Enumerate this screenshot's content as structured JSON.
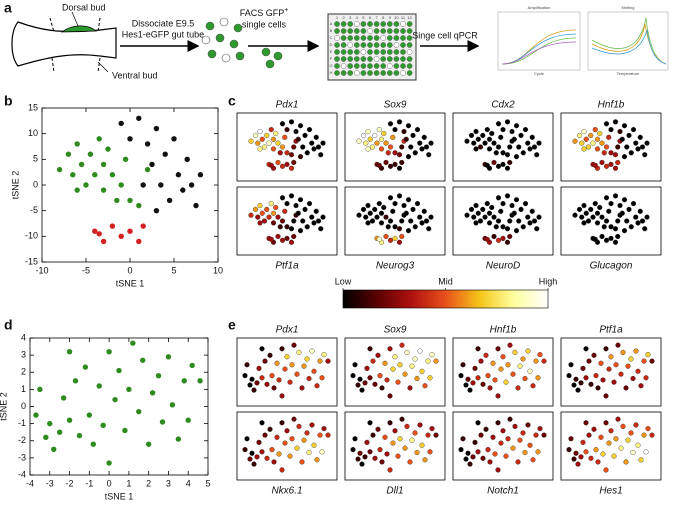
{
  "panel_labels": [
    "a",
    "b",
    "c",
    "d",
    "e"
  ],
  "workflow": {
    "dorsal_bud": "Dorsal bud",
    "ventral_bud": "Ventral bud",
    "dissociate": [
      "Dissociate E9.5",
      "Hes1-eGFP gut tube"
    ],
    "facs": {
      "text": "FACS GFP",
      "sup": "+",
      "line2": "single cells"
    },
    "qpcr": "Singe cell qPCR",
    "plate_columns": [
      "1",
      "2",
      "3",
      "4",
      "5",
      "6",
      "7",
      "8",
      "9",
      "10",
      "11",
      "12"
    ],
    "plate_rows": [
      "A",
      "B",
      "C",
      "D",
      "E",
      "F",
      "G",
      "H"
    ],
    "amplification": {
      "title": "Amplification",
      "xlabel": "Cycle"
    },
    "melting": {
      "title": "Melting",
      "xlabel": "Temperature"
    }
  },
  "colorbar": {
    "clim": [
      0,
      1
    ],
    "ticks": [
      {
        "value": 0,
        "label": "Low"
      },
      {
        "value": 0.5,
        "label": "Mid"
      },
      {
        "value": 1,
        "label": "High"
      }
    ],
    "colors": [
      "#000000",
      "#5a0000",
      "#b01010",
      "#e8501a",
      "#f5c518",
      "#ffffa0",
      "#ffffff"
    ]
  },
  "chart_data": [
    {
      "type": "scatter",
      "xlabel": "tSNE 1",
      "ylabel": "tSNE 2",
      "xlim": [
        -10,
        10
      ],
      "ylim": [
        -15,
        15
      ],
      "xticks": [
        -10,
        -5,
        0,
        5,
        10
      ],
      "yticks": [
        -15,
        -10,
        -5,
        0,
        5,
        10,
        15
      ],
      "series": [
        {
          "color": "#2e8b1e",
          "x": [
            -8,
            -7,
            -6.5,
            -6,
            -5.5,
            -5,
            -4.5,
            -4,
            -3.5,
            -3,
            -3,
            -2.5,
            -2,
            -1.5,
            -1,
            -0.5,
            0,
            1,
            2,
            -6
          ],
          "y": [
            3,
            6,
            2,
            8,
            4,
            0,
            6,
            2,
            9,
            4,
            -1,
            7,
            2,
            -3,
            0,
            5,
            -3,
            -4,
            3,
            -1
          ]
        },
        {
          "color": "#111111",
          "x": [
            -1,
            0,
            1,
            2,
            2.5,
            3,
            3.5,
            4,
            4.5,
            5,
            5.5,
            6,
            6.5,
            7,
            7.5,
            8,
            3,
            1.5
          ],
          "y": [
            12,
            9,
            13,
            8,
            4,
            11,
            0,
            6,
            -3,
            9,
            2,
            -1,
            5,
            0,
            -4,
            2,
            -5,
            0
          ]
        },
        {
          "color": "#d42020",
          "x": [
            -4,
            -3,
            -2,
            -1,
            0,
            1,
            1.5,
            -3.5
          ],
          "y": [
            -9,
            -11,
            -8,
            -10,
            -9,
            -11,
            -8,
            -9.5
          ]
        }
      ]
    },
    {
      "type": "expression_grid",
      "series": [
        {
          "name": "Pdx1",
          "values": [
            0.7,
            0.9,
            0.6,
            1,
            0.5,
            0.8,
            0.7,
            0.9,
            0.4,
            0.6,
            0.5,
            0.8,
            0.7,
            0.3,
            0.6,
            0.5,
            0.4,
            0.2,
            0.3,
            0.8,
            0,
            0.1,
            0,
            0,
            0.1,
            0,
            0,
            0,
            0,
            0,
            0,
            0,
            0,
            0,
            0,
            0,
            0.1,
            0.2,
            0.4,
            0.3,
            0.5,
            0.4,
            0.3,
            0.4,
            0.2,
            0.3
          ]
        },
        {
          "name": "Sox9",
          "values": [
            0.9,
            1,
            0.8,
            0.9,
            0.7,
            0.8,
            1,
            0.6,
            0.9,
            0.8,
            0.5,
            0.7,
            0.6,
            0.4,
            0.5,
            0.6,
            0.3,
            0.2,
            0.4,
            0.9,
            0,
            0,
            0,
            0.1,
            0.1,
            0,
            0,
            0,
            0,
            0,
            0,
            0,
            0,
            0,
            0,
            0,
            0,
            0.1,
            0.2,
            0.1,
            0.2,
            0.1,
            0.1,
            0,
            0.1,
            0.2
          ]
        },
        {
          "name": "Cdx2",
          "values": [
            0,
            0,
            0,
            0,
            0,
            0.1,
            0,
            0,
            0,
            0,
            0,
            0,
            0,
            0,
            0,
            0,
            0,
            0,
            0,
            0,
            0,
            0,
            0,
            0,
            0,
            0,
            0,
            0,
            0,
            0,
            0,
            0,
            0,
            0,
            0,
            0,
            0,
            0,
            0.1,
            0,
            0.2,
            0,
            0,
            0,
            0.1,
            0
          ]
        },
        {
          "name": "Hnf1b",
          "values": [
            0.6,
            0.8,
            0.7,
            0.9,
            0.5,
            0.7,
            0.6,
            0.8,
            0.5,
            0.6,
            0.5,
            0.7,
            0.6,
            0.4,
            0.5,
            0.4,
            0.3,
            0.3,
            0.3,
            0.7,
            0,
            0,
            0,
            0.1,
            0,
            0,
            0,
            0,
            0,
            0,
            0,
            0,
            0,
            0,
            0,
            0,
            0,
            0.1,
            0.3,
            0.4,
            0.3,
            0.4,
            0.3,
            0.3,
            0.4,
            0.3
          ]
        },
        {
          "name": "Ptf1a",
          "values": [
            0.4,
            0.6,
            0.3,
            0.7,
            0.5,
            0.3,
            0.5,
            0.4,
            0.8,
            0.6,
            0.2,
            0.5,
            0.3,
            0.1,
            0.2,
            0.4,
            0.1,
            0,
            0.1,
            0.3,
            0,
            0,
            0,
            0,
            0,
            0,
            0,
            0,
            0,
            0,
            0,
            0,
            0,
            0,
            0,
            0,
            0,
            0,
            0.3,
            0.2,
            0.3,
            0.3,
            0.2,
            0.3,
            0.2,
            0.3
          ]
        },
        {
          "name": "Neurog3",
          "values": [
            0,
            0,
            0,
            0,
            0,
            0,
            0,
            0,
            0,
            0,
            0,
            0,
            0.1,
            0,
            0,
            0,
            0,
            0.1,
            0,
            0,
            0,
            0,
            0,
            0,
            0,
            0,
            0,
            0,
            0,
            0,
            0,
            0,
            0,
            0,
            0,
            0,
            0,
            0,
            0.6,
            0.8,
            0.5,
            0.4,
            0.7,
            0.3,
            0.5,
            0.9
          ]
        },
        {
          "name": "NeuroD",
          "values": [
            0,
            0,
            0,
            0,
            0,
            0,
            0,
            0,
            0,
            0,
            0,
            0,
            0,
            0,
            0,
            0,
            0,
            0,
            0,
            0,
            0,
            0,
            0,
            0,
            0,
            0,
            0,
            0,
            0,
            0,
            0,
            0,
            0,
            0,
            0,
            0,
            0,
            0,
            0.2,
            0.3,
            0.1,
            0.4,
            0.3,
            0.1,
            0.2,
            0.3
          ]
        },
        {
          "name": "Glucagon",
          "values": [
            0,
            0,
            0,
            0,
            0,
            0,
            0,
            0,
            0,
            0,
            0,
            0,
            0,
            0,
            0,
            0,
            0,
            0,
            0,
            0,
            0,
            0,
            0,
            0,
            0,
            0,
            0,
            0,
            0,
            0,
            0,
            0,
            0,
            0,
            0,
            0,
            0,
            0,
            0,
            0,
            0,
            0,
            0,
            0,
            0,
            0
          ]
        }
      ]
    },
    {
      "type": "scatter",
      "xlabel": "tSNE 1",
      "ylabel": "tSNE 2",
      "xlim": [
        -4,
        5
      ],
      "ylim": [
        -4,
        4
      ],
      "xticks": [
        -4,
        -3,
        -2,
        -1,
        0,
        1,
        2,
        3,
        4,
        5
      ],
      "yticks": [
        -4,
        -3,
        -2,
        -1,
        0,
        1,
        2,
        3,
        4
      ],
      "series": [
        {
          "color": "#2e8b1e",
          "x": [
            -3.7,
            -3.5,
            -3.2,
            -3,
            -2.8,
            -2.5,
            -2.3,
            -2,
            -2,
            -1.7,
            -1.5,
            -1.2,
            -1,
            -0.8,
            -0.5,
            -0.3,
            0,
            0,
            0.3,
            0.5,
            0.8,
            1,
            1.2,
            1.5,
            1.7,
            2,
            2.2,
            2.5,
            2.7,
            3,
            3.2,
            3.5,
            3.8,
            4.2,
            4.6,
            4
          ],
          "y": [
            -0.5,
            1,
            -1.8,
            -1,
            -2.5,
            -1.5,
            0.5,
            3.2,
            -0.8,
            1.5,
            -1.7,
            2.3,
            -0.5,
            -2.2,
            1.2,
            -1.1,
            3.2,
            -3.3,
            0.4,
            2.1,
            -1.4,
            1,
            3.7,
            -0.3,
            2.7,
            -2.2,
            0.8,
            1.8,
            -0.9,
            2.9,
            0.1,
            -1.9,
            1.5,
            2.4,
            1.5,
            -0.8
          ]
        }
      ]
    },
    {
      "type": "expression_grid",
      "series": [
        {
          "name": "Pdx1",
          "values": [
            0,
            0.1,
            0,
            0,
            0.1,
            0.2,
            0.3,
            0,
            0.4,
            0.2,
            0.3,
            0.1,
            0.5,
            0.2,
            0.6,
            0.4,
            0.1,
            0.3,
            0.5,
            0.7,
            0.4,
            0.6,
            0.2,
            0.5,
            0.8,
            0.3,
            0.6,
            0.7,
            0.4,
            0.9,
            0.5,
            0.4,
            0.6,
            0.8,
            0.3,
            0.5
          ]
        },
        {
          "name": "Sox9",
          "values": [
            0,
            0,
            0.1,
            0,
            0,
            0.2,
            0.3,
            0.1,
            0.2,
            0.4,
            0.2,
            0.3,
            0.5,
            0.1,
            0.6,
            0.4,
            0.3,
            0.2,
            0.7,
            0.8,
            0.5,
            0.7,
            0.4,
            0.6,
            0.9,
            0.3,
            0.8,
            0.9,
            0.6,
            1,
            0.7,
            0.5,
            0.8,
            0.9,
            0.6,
            0.7
          ]
        },
        {
          "name": "Hnf1b",
          "values": [
            0,
            0.1,
            0,
            0.2,
            0,
            0.3,
            0.2,
            0.1,
            0.4,
            0.3,
            0.2,
            0.4,
            0.5,
            0.3,
            0.6,
            0.5,
            0.2,
            0.3,
            0.6,
            0.5,
            0.7,
            0.6,
            0.3,
            0.5,
            0.7,
            0.4,
            0.8,
            0.6,
            0.5,
            0.7,
            0.9,
            0.4,
            0.6,
            0.5,
            0.4,
            0.6
          ]
        },
        {
          "name": "Ptf1a",
          "values": [
            0,
            0,
            0,
            0.1,
            0,
            0.1,
            0.2,
            0,
            0.3,
            0.2,
            0.1,
            0.2,
            0.4,
            0.1,
            0.5,
            0.3,
            0.1,
            0.2,
            0.4,
            0.6,
            0.3,
            0.5,
            0.2,
            0.4,
            0.6,
            0.2,
            0.5,
            0.7,
            0.3,
            0.6,
            0.4,
            0.3,
            0.5,
            0.7,
            0.2,
            0.4
          ]
        },
        {
          "name": "Nkx6.1",
          "values": [
            0.1,
            0,
            0.2,
            0,
            0.1,
            0.3,
            0.2,
            0,
            0.3,
            0.2,
            0.4,
            0.1,
            0.5,
            0.3,
            0.4,
            0.6,
            0.1,
            0.4,
            0.5,
            0.3,
            0.6,
            0.5,
            0.2,
            0.7,
            0.4,
            0.5,
            0.6,
            0.4,
            0.8,
            0.3,
            0.7,
            0.6,
            0.5,
            0.3,
            0.4,
            0.9
          ]
        },
        {
          "name": "Dll1",
          "values": [
            0,
            0,
            0.1,
            0.2,
            0,
            0.1,
            0.3,
            0,
            0.2,
            0.1,
            0.3,
            0.2,
            0.4,
            0.2,
            0.5,
            0.3,
            0.1,
            0.4,
            0.6,
            0.3,
            0.5,
            0.7,
            0.1,
            0.6,
            0.4,
            0.5,
            0.8,
            0.5,
            0.6,
            0.3,
            0.7,
            0.6,
            0.4,
            0.3,
            0.2,
            0.5
          ]
        },
        {
          "name": "Notch1",
          "values": [
            0,
            0.1,
            0,
            0,
            0.1,
            0.2,
            0.1,
            0,
            0.3,
            0.2,
            0.2,
            0.1,
            0.4,
            0.3,
            0.3,
            0.5,
            0.1,
            0.3,
            0.4,
            0.3,
            0.5,
            0.4,
            0.1,
            0.6,
            0.3,
            0.4,
            0.5,
            0.4,
            0.6,
            0.2,
            0.5,
            0.5,
            0.4,
            0.3,
            0.2,
            0.6
          ]
        },
        {
          "name": "Hes1",
          "values": [
            0.1,
            0.2,
            0.1,
            0.2,
            0.3,
            0.3,
            0.4,
            0.2,
            0.5,
            0.3,
            0.4,
            0.3,
            0.6,
            0.4,
            0.5,
            0.7,
            0.2,
            0.5,
            0.6,
            0.4,
            0.7,
            0.6,
            0.3,
            0.8,
            0.5,
            0.6,
            0.7,
            0.5,
            0.9,
            0.4,
            0.8,
            0.7,
            0.6,
            0.5,
            0.4,
            1
          ]
        }
      ]
    }
  ]
}
